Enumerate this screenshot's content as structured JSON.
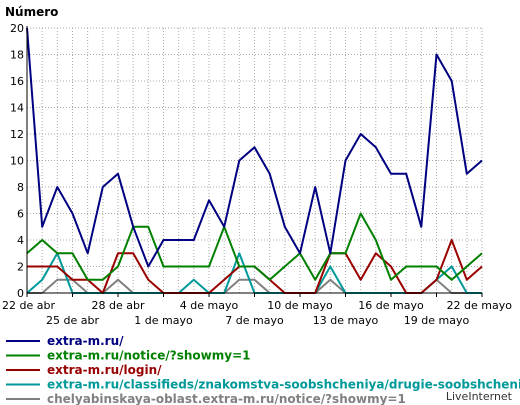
{
  "chart_data": {
    "type": "line",
    "ylabel": "Número",
    "ylim": [
      0,
      20
    ],
    "yticks": [
      0,
      2,
      4,
      6,
      8,
      10,
      12,
      14,
      16,
      18,
      20
    ],
    "grid": true,
    "legend_position": "bottom",
    "x": [
      "22 abr",
      "23 abr",
      "24 abr",
      "25 abr",
      "26 abr",
      "27 abr",
      "28 abr",
      "29 abr",
      "30 abr",
      "1 may",
      "2 may",
      "3 may",
      "4 may",
      "5 may",
      "6 may",
      "7 may",
      "8 may",
      "9 may",
      "10 may",
      "11 may",
      "12 may",
      "13 may",
      "14 may",
      "15 may",
      "16 may",
      "17 may",
      "18 may",
      "19 may",
      "20 may",
      "21 may",
      "22 may"
    ],
    "x_tick_labels": [
      {
        "index": 0,
        "label": "22 de abr",
        "row": 1
      },
      {
        "index": 3,
        "label": "25 de abr",
        "row": 2
      },
      {
        "index": 6,
        "label": "28 de abr",
        "row": 1
      },
      {
        "index": 9,
        "label": "1 de mayo",
        "row": 2
      },
      {
        "index": 12,
        "label": "4 de mayo",
        "row": 1
      },
      {
        "index": 15,
        "label": "7 de mayo",
        "row": 2
      },
      {
        "index": 18,
        "label": "10 de mayo",
        "row": 1
      },
      {
        "index": 21,
        "label": "13 de mayo",
        "row": 2
      },
      {
        "index": 24,
        "label": "16 de mayo",
        "row": 1
      },
      {
        "index": 27,
        "label": "19 de mayo",
        "row": 2
      },
      {
        "index": 30,
        "label": "22 de mayo",
        "row": 1
      }
    ],
    "series": [
      {
        "name": "extra-m.ru/",
        "color": "#000080",
        "values": [
          20,
          5,
          8,
          6,
          3,
          8,
          9,
          5,
          2,
          4,
          4,
          4,
          7,
          5,
          10,
          11,
          9,
          5,
          3,
          8,
          3,
          10,
          12,
          11,
          9,
          9,
          5,
          18,
          16,
          9,
          10
        ]
      },
      {
        "name": "extra-m.ru/notice/?showmy=1",
        "color": "#008000",
        "values": [
          3,
          4,
          3,
          3,
          1,
          1,
          2,
          5,
          5,
          2,
          2,
          2,
          2,
          5,
          2,
          2,
          1,
          2,
          3,
          1,
          3,
          3,
          6,
          4,
          1,
          2,
          2,
          2,
          1,
          2,
          3
        ]
      },
      {
        "name": "extra-m.ru/login/",
        "color": "#990000",
        "values": [
          2,
          2,
          2,
          1,
          1,
          0,
          3,
          3,
          1,
          0,
          0,
          0,
          0,
          1,
          2,
          2,
          1,
          0,
          0,
          0,
          3,
          3,
          1,
          3,
          2,
          0,
          0,
          1,
          4,
          1,
          2
        ]
      },
      {
        "name": "extra-m.ru/classifieds/znakomstva-soobshcheniya/drugie-soobshcheniya/",
        "color": "#009999",
        "values": [
          0,
          1,
          3,
          0,
          0,
          0,
          0,
          0,
          0,
          0,
          0,
          1,
          0,
          0,
          3,
          0,
          0,
          0,
          0,
          0,
          2,
          0,
          0,
          0,
          0,
          0,
          0,
          1,
          2,
          0,
          0
        ]
      },
      {
        "name": "chelyabinskaya-oblast.extra-m.ru/notice/?showmy=1",
        "color": "#808080",
        "values": [
          0,
          0,
          1,
          1,
          0,
          0,
          1,
          0,
          0,
          0,
          0,
          0,
          0,
          0,
          1,
          1,
          0,
          0,
          0,
          0,
          1,
          0,
          0,
          0,
          0,
          0,
          0,
          1,
          0,
          0,
          0
        ]
      }
    ]
  },
  "brand": "LiveInternet"
}
